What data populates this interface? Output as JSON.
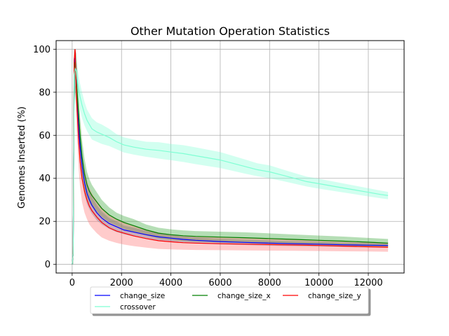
{
  "chart_data": {
    "type": "line",
    "title": "Other Mutation Operation Statistics",
    "xlabel": "",
    "ylabel": "Genomes Inserted (%)",
    "xlim": [
      -650,
      13450
    ],
    "ylim": [
      -4,
      104
    ],
    "xticks": [
      0,
      2000,
      4000,
      6000,
      8000,
      10000,
      12000
    ],
    "yticks": [
      0,
      20,
      40,
      60,
      80,
      100
    ],
    "grid": true,
    "legend_placement": "lower center",
    "series": [
      {
        "name": "change_size",
        "color": "#0000ff",
        "band_color": "#1f77b4",
        "x": [
          0,
          40,
          80,
          120,
          160,
          200,
          260,
          320,
          400,
          500,
          600,
          700,
          800,
          1000,
          1200,
          1500,
          1800,
          2100,
          2500,
          3000,
          3500,
          4000,
          4500,
          5000,
          6000,
          7000,
          8000,
          9000,
          10000,
          11000,
          12000,
          12800
        ],
        "y": [
          0,
          5,
          90,
          96,
          88,
          78,
          64,
          55,
          46,
          38,
          33,
          30,
          27.5,
          24,
          21.5,
          19,
          17.5,
          16,
          15,
          13.8,
          12.8,
          12.2,
          11.6,
          11.2,
          10.6,
          10.2,
          9.9,
          9.6,
          9.4,
          9.1,
          8.9,
          8.8
        ],
        "lower": [
          0,
          0,
          75,
          82,
          76,
          68,
          55,
          47,
          39,
          32,
          28,
          25.5,
          23.5,
          20.5,
          18.5,
          16.5,
          15,
          14,
          13,
          12,
          11.2,
          10.7,
          10.2,
          9.8,
          9.3,
          9,
          8.7,
          8.5,
          8.3,
          8.1,
          7.9,
          7.8
        ],
        "upper": [
          0,
          20,
          100,
          100,
          98,
          88,
          72,
          63,
          53,
          44,
          38,
          34.5,
          31.5,
          27.5,
          24.5,
          21.5,
          20,
          18,
          17,
          15.6,
          14.4,
          13.7,
          13,
          12.6,
          11.9,
          11.4,
          11.1,
          10.7,
          10.5,
          10.1,
          9.9,
          9.8
        ]
      },
      {
        "name": "change_size_x",
        "color": "#008000",
        "band_color": "#2ca02c",
        "x": [
          0,
          40,
          80,
          120,
          160,
          200,
          260,
          320,
          400,
          500,
          600,
          700,
          800,
          1000,
          1200,
          1500,
          1800,
          2100,
          2500,
          3000,
          3500,
          4000,
          4500,
          5000,
          6000,
          7000,
          8000,
          9000,
          10000,
          11000,
          12000,
          12800
        ],
        "y": [
          0,
          5,
          88,
          94,
          86,
          80,
          70,
          60,
          50,
          42,
          37,
          34,
          32,
          29,
          26,
          23,
          21,
          19.5,
          18,
          16,
          14.5,
          13.8,
          13.3,
          13,
          12.7,
          12.4,
          12,
          11.6,
          11.2,
          10.8,
          10.3,
          9.9
        ],
        "lower": [
          0,
          0,
          72,
          80,
          74,
          69,
          60,
          51,
          42,
          35,
          31,
          28.5,
          27,
          24.5,
          22,
          19.5,
          18,
          16.5,
          15,
          13.5,
          12,
          11.3,
          10.8,
          10.5,
          10.2,
          9.9,
          9.6,
          9.3,
          9,
          8.7,
          8.3,
          8
        ],
        "upper": [
          0,
          20,
          100,
          100,
          98,
          92,
          80,
          69,
          58,
          49,
          43,
          39.5,
          37,
          33.5,
          30,
          26.5,
          24,
          22.5,
          21,
          18.5,
          17,
          16.3,
          15.8,
          15.5,
          15.2,
          14.9,
          14.4,
          13.9,
          13.4,
          12.9,
          12.3,
          11.8
        ]
      },
      {
        "name": "change_size_y",
        "color": "#ff0000",
        "band_color": "#ff6b6b",
        "x": [
          0,
          40,
          80,
          120,
          160,
          200,
          260,
          320,
          400,
          500,
          600,
          700,
          800,
          1000,
          1200,
          1500,
          1800,
          2100,
          2500,
          3000,
          3500,
          4000,
          4500,
          5000,
          6000,
          7000,
          8000,
          9000,
          10000,
          11000,
          12000,
          12800
        ],
        "y": [
          0,
          5,
          95,
          100,
          84,
          72,
          58,
          48,
          40,
          34,
          30,
          27,
          25,
          22,
          19.5,
          17,
          15.5,
          14.5,
          13.2,
          12,
          11,
          10.5,
          10.1,
          9.9,
          9.6,
          9.4,
          9.2,
          9,
          8.8,
          8.5,
          8.2,
          8
        ],
        "lower": [
          0,
          0,
          80,
          88,
          70,
          58,
          45,
          36,
          29,
          24,
          21,
          18.5,
          17,
          14.5,
          12.5,
          11,
          10,
          9.2,
          8.5,
          7.8,
          7.2,
          7,
          6.8,
          6.7,
          6.6,
          6.5,
          6.4,
          6.3,
          6.2,
          6.1,
          6,
          5.9
        ],
        "upper": [
          0,
          20,
          100,
          100,
          98,
          86,
          71,
          60,
          51,
          44,
          39,
          35.5,
          33,
          29.5,
          26.5,
          23,
          21,
          19.8,
          18,
          16.2,
          14.8,
          14,
          13.4,
          13.1,
          12.6,
          12.3,
          12,
          11.7,
          11.4,
          11,
          10.5,
          10.1
        ]
      },
      {
        "name": "crossover",
        "color": "#7fffd4",
        "band_color": "#7fffd4",
        "x": [
          0,
          40,
          80,
          120,
          160,
          200,
          260,
          320,
          400,
          500,
          600,
          700,
          800,
          1000,
          1200,
          1500,
          1800,
          2100,
          2500,
          3000,
          3500,
          4000,
          4500,
          5000,
          5500,
          6000,
          6500,
          7000,
          7500,
          8000,
          8500,
          9000,
          9500,
          10000,
          10500,
          11000,
          11500,
          12000,
          12500,
          12800
        ],
        "y": [
          0,
          5,
          88,
          91,
          90,
          86,
          82,
          78,
          74,
          70,
          67,
          65,
          63,
          61.5,
          60.5,
          59,
          57,
          55.5,
          54.5,
          53.5,
          53,
          52.2,
          51.5,
          50.5,
          49.5,
          48.5,
          47,
          45.5,
          44,
          43,
          41.5,
          40,
          38.5,
          37.5,
          36.5,
          35.5,
          34.5,
          33.5,
          32.5,
          32
        ],
        "lower": [
          0,
          0,
          78,
          83,
          83,
          80,
          76,
          72,
          68,
          64.5,
          62,
          60,
          58,
          57,
          56,
          55,
          53.5,
          52,
          51,
          50,
          49.2,
          48.4,
          47.6,
          46.6,
          45.7,
          44.8,
          43.5,
          42.2,
          41,
          40,
          38.8,
          37.5,
          36.2,
          35.2,
          34.3,
          33.4,
          32.5,
          31.6,
          30.7,
          30.3
        ],
        "upper": [
          0,
          20,
          98,
          99,
          97,
          92,
          88,
          84,
          80,
          75.5,
          72,
          70,
          68,
          66,
          65,
          63,
          60.5,
          59,
          58,
          57,
          56.8,
          56,
          55.4,
          54.4,
          53.3,
          52.2,
          50.5,
          48.8,
          47,
          46,
          44.2,
          42.5,
          40.8,
          39.8,
          38.7,
          37.6,
          36.5,
          35.4,
          34.3,
          33.7
        ]
      }
    ]
  }
}
